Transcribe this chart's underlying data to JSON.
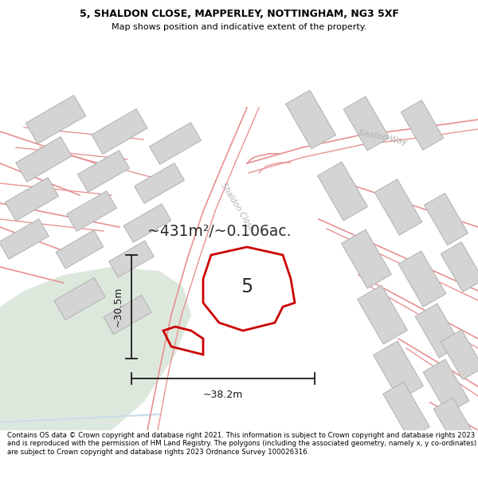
{
  "title_line1": "5, SHALDON CLOSE, MAPPERLEY, NOTTINGHAM, NG3 5XF",
  "title_line2": "Map shows position and indicative extent of the property.",
  "copyright_text": "Contains OS data © Crown copyright and database right 2021. This information is subject to Crown copyright and database rights 2023 and is reproduced with the permission of HM Land Registry. The polygons (including the associated geometry, namely x, y co-ordinates) are subject to Crown copyright and database rights 2023 Ordnance Survey 100026316.",
  "area_label": "~431m²/~0.106ac.",
  "number_label": "5",
  "dim_vertical": "~30.5m",
  "dim_horizontal": "~38.2m",
  "bg_color": "#ffffff",
  "map_bg": "#f0f0f0",
  "green_color": "#dde8dd",
  "building_fill": "#d4d4d4",
  "building_edge": "#b0b0b0",
  "road_color": "#e89090",
  "property_color": "#cc0000",
  "dim_color": "#1a1a1a",
  "street_label_color": "#b0b0b0",
  "title_color": "#000000",
  "copyright_color": "#000000",
  "water_color": "#c8dce8"
}
